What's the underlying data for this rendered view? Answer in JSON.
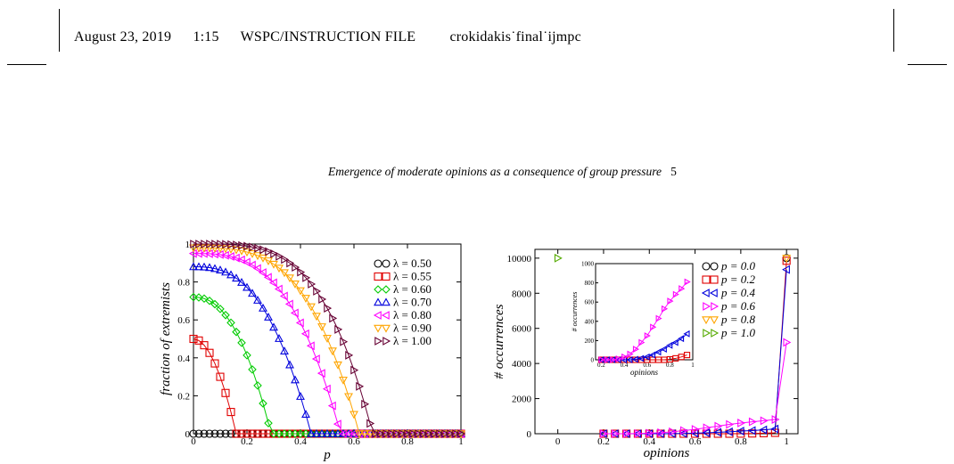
{
  "header": {
    "date": "August 23, 2019",
    "time": "1:15",
    "style": "WSPC/INSTRUCTION FILE",
    "file": "crokidakis˙final˙ijmpc"
  },
  "running_title": "Emergence of moderate opinions as a consequence of group pressure",
  "page_number": "5",
  "colors": {
    "black": "#000000",
    "red": "#e00000",
    "green": "#00cc00",
    "blue": "#0000dd",
    "magenta": "#ff00ff",
    "orange": "#ffa500",
    "maroon": "#660033",
    "olive": "#55aa00"
  },
  "chart_data": [
    {
      "type": "line",
      "xlabel": "p",
      "ylabel": "fraction of extremists",
      "xlim": [
        0,
        1
      ],
      "ylim": [
        0,
        1
      ],
      "xticks": [
        "0",
        "0.2",
        "0.4",
        "0.6",
        "0.8",
        "1"
      ],
      "yticks": [
        "0",
        "0.2",
        "0.4",
        "0.6",
        "0.8",
        "1"
      ],
      "legend_position": "right",
      "series": [
        {
          "name": "λ = 0.50",
          "color": "#000000",
          "marker": "circle",
          "pc": 0.0,
          "y0": 0.0
        },
        {
          "name": "λ = 0.55",
          "color": "#e00000",
          "marker": "square",
          "pc": 0.16,
          "y0": 0.5
        },
        {
          "name": "λ = 0.60",
          "color": "#00cc00",
          "marker": "diamond",
          "pc": 0.29,
          "y0": 0.72
        },
        {
          "name": "λ = 0.70",
          "color": "#0000dd",
          "marker": "triangle-up",
          "pc": 0.44,
          "y0": 0.88
        },
        {
          "name": "λ = 0.80",
          "color": "#ff00ff",
          "marker": "triangle-left",
          "pc": 0.55,
          "y0": 0.95
        },
        {
          "name": "λ = 0.90",
          "color": "#ffa500",
          "marker": "triangle-down",
          "pc": 0.62,
          "y0": 0.98
        },
        {
          "name": "λ = 1.00",
          "color": "#660033",
          "marker": "triangle-right",
          "pc": 0.67,
          "y0": 1.0
        }
      ]
    },
    {
      "type": "line",
      "xlabel": "opinions",
      "ylabel": "# occurrences",
      "xlim": [
        -0.1,
        1.05
      ],
      "ylim": [
        0,
        10500
      ],
      "xticks": [
        "0",
        "0.2",
        "0.4",
        "0.6",
        "0.8",
        "1"
      ],
      "yticks": [
        "0",
        "2000",
        "4000",
        "6000",
        "8000",
        "10000"
      ],
      "legend_position": "right",
      "series": [
        {
          "name": "p = 0.0",
          "color": "#000000",
          "marker": "circle",
          "points": [
            [
              1.0,
              10000
            ]
          ]
        },
        {
          "name": "p = 0.2",
          "color": "#e00000",
          "marker": "square",
          "points": [
            [
              0.2,
              0
            ],
            [
              0.25,
              0
            ],
            [
              0.3,
              0
            ],
            [
              0.35,
              0
            ],
            [
              0.4,
              0
            ],
            [
              0.45,
              0
            ],
            [
              0.5,
              0
            ],
            [
              0.55,
              0
            ],
            [
              0.6,
              0
            ],
            [
              0.65,
              0
            ],
            [
              0.7,
              0
            ],
            [
              0.75,
              0
            ],
            [
              0.8,
              5
            ],
            [
              0.85,
              15
            ],
            [
              0.9,
              30
            ],
            [
              0.95,
              50
            ],
            [
              1.0,
              9850
            ]
          ]
        },
        {
          "name": "p = 0.4",
          "color": "#0000dd",
          "marker": "triangle-left",
          "points": [
            [
              0.2,
              0
            ],
            [
              0.25,
              0
            ],
            [
              0.3,
              0
            ],
            [
              0.35,
              0
            ],
            [
              0.4,
              0
            ],
            [
              0.45,
              0
            ],
            [
              0.5,
              5
            ],
            [
              0.55,
              15
            ],
            [
              0.6,
              30
            ],
            [
              0.65,
              50
            ],
            [
              0.7,
              80
            ],
            [
              0.75,
              110
            ],
            [
              0.8,
              150
            ],
            [
              0.85,
              180
            ],
            [
              0.9,
              220
            ],
            [
              0.95,
              270
            ],
            [
              1.0,
              9350
            ]
          ]
        },
        {
          "name": "p = 0.6",
          "color": "#ff00ff",
          "marker": "triangle-right",
          "points": [
            [
              0.2,
              0
            ],
            [
              0.25,
              0
            ],
            [
              0.3,
              0
            ],
            [
              0.35,
              10
            ],
            [
              0.4,
              30
            ],
            [
              0.45,
              60
            ],
            [
              0.5,
              110
            ],
            [
              0.55,
              180
            ],
            [
              0.6,
              250
            ],
            [
              0.65,
              340
            ],
            [
              0.7,
              430
            ],
            [
              0.75,
              530
            ],
            [
              0.8,
              610
            ],
            [
              0.85,
              680
            ],
            [
              0.9,
              740
            ],
            [
              0.95,
              810
            ],
            [
              1.0,
              5200
            ]
          ]
        },
        {
          "name": "p = 0.8",
          "color": "#ffa500",
          "marker": "triangle-down",
          "points": [
            [
              1.0,
              10000
            ]
          ]
        },
        {
          "name": "p = 1.0",
          "color": "#55aa00",
          "marker": "triangle-right",
          "points": [
            [
              0.0,
              10000
            ]
          ]
        }
      ],
      "inset": {
        "xlabel": "opinions",
        "ylabel": "# occurrences",
        "xlim": [
          0.15,
          1.0
        ],
        "ylim": [
          0,
          1000
        ],
        "xticks": [
          "0.2",
          "0.4",
          "0.6",
          "0.8",
          "1"
        ],
        "yticks": [
          "0",
          "200",
          "400",
          "600",
          "800",
          "1000"
        ]
      }
    }
  ]
}
